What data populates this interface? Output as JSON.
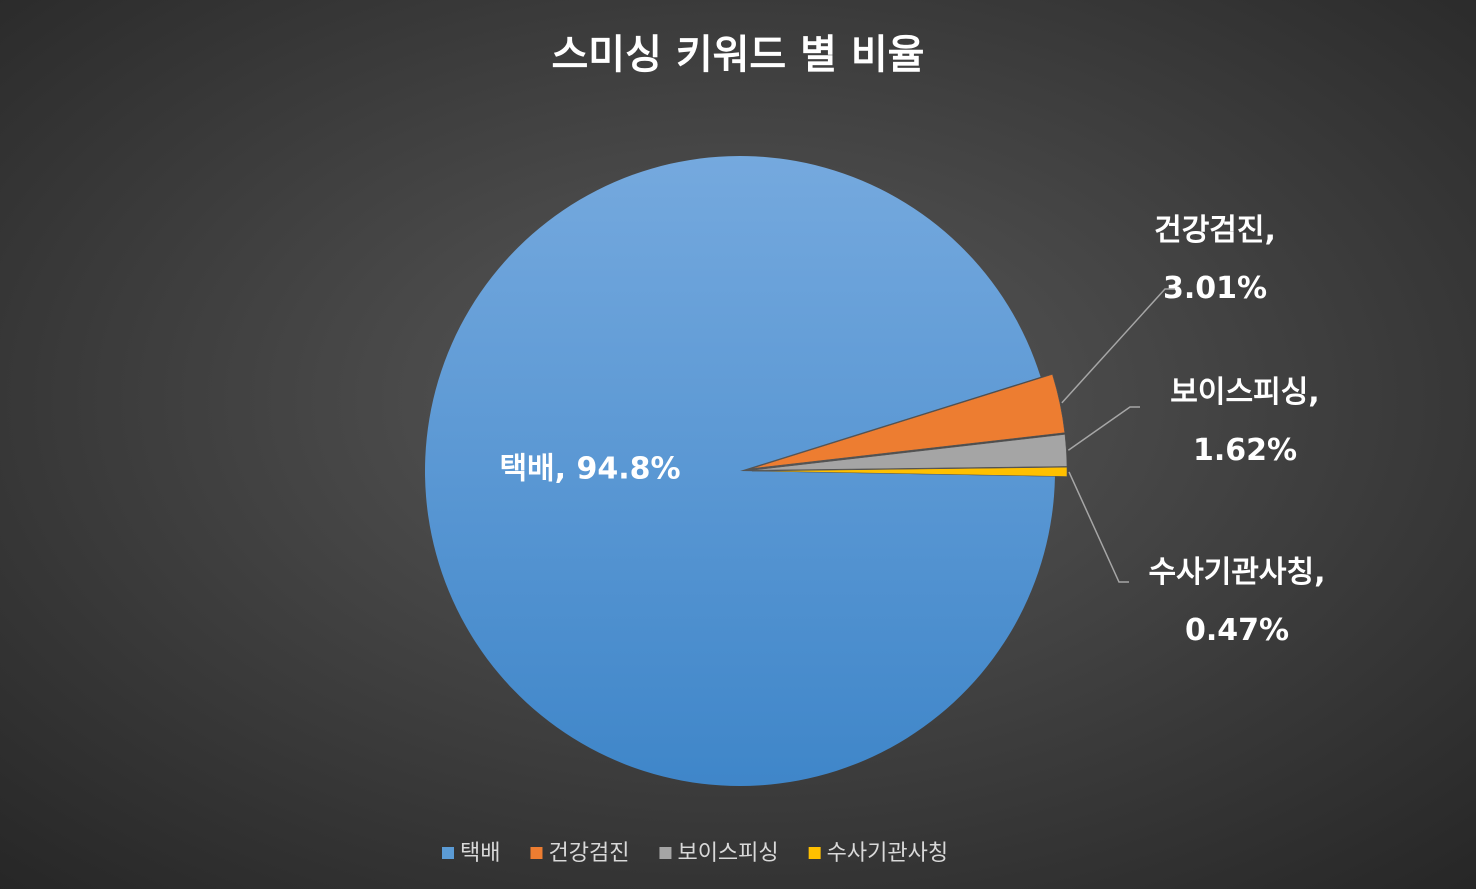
{
  "chart_data": {
    "type": "pie",
    "title": "스미싱 키워드 별 비율",
    "categories": [
      "택배",
      "건강검진",
      "보이스피싱",
      "수사기관사칭"
    ],
    "values": [
      94.8,
      3.01,
      1.62,
      0.47
    ],
    "value_labels": [
      "택배, 94.8%",
      "건강검진, 3.01%",
      "보이스피싱, 1.62%",
      "수사기관사칭, 0.47%"
    ],
    "colors": [
      "#5b9bd5",
      "#ed7d31",
      "#a5a5a5",
      "#ffc000"
    ],
    "legend": "bottom"
  }
}
